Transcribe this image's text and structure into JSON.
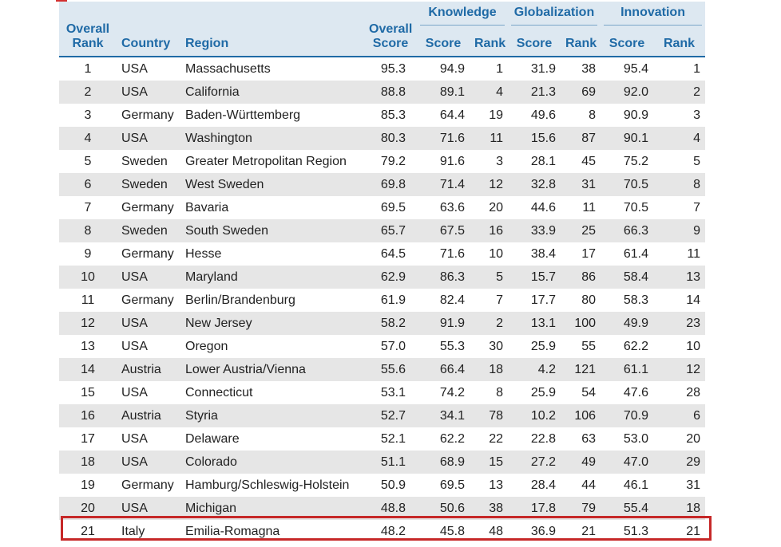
{
  "header": {
    "overall_rank": "Overall Rank",
    "country": "Country",
    "region": "Region",
    "overall_score": "Overall Score",
    "knowledge": "Knowledge",
    "globalization": "Globalization",
    "innovation": "Innovation",
    "score": "Score",
    "rank": "Rank"
  },
  "columns": [
    "Overall Rank",
    "Country",
    "Region",
    "Overall Score",
    "Knowledge Score",
    "Knowledge Rank",
    "Globalization Score",
    "Globalization Rank",
    "Innovation Score",
    "Innovation Rank"
  ],
  "rows": [
    [
      "1",
      "USA",
      "Massachusetts",
      "95.3",
      "94.9",
      "1",
      "31.9",
      "38",
      "95.4",
      "1"
    ],
    [
      "2",
      "USA",
      "California",
      "88.8",
      "89.1",
      "4",
      "21.3",
      "69",
      "92.0",
      "2"
    ],
    [
      "3",
      "Germany",
      "Baden-Württemberg",
      "85.3",
      "64.4",
      "19",
      "49.6",
      "8",
      "90.9",
      "3"
    ],
    [
      "4",
      "USA",
      "Washington",
      "80.3",
      "71.6",
      "11",
      "15.6",
      "87",
      "90.1",
      "4"
    ],
    [
      "5",
      "Sweden",
      "Greater Metropolitan Region",
      "79.2",
      "91.6",
      "3",
      "28.1",
      "45",
      "75.2",
      "5"
    ],
    [
      "6",
      "Sweden",
      "West Sweden",
      "69.8",
      "71.4",
      "12",
      "32.8",
      "31",
      "70.5",
      "8"
    ],
    [
      "7",
      "Germany",
      "Bavaria",
      "69.5",
      "63.6",
      "20",
      "44.6",
      "11",
      "70.5",
      "7"
    ],
    [
      "8",
      "Sweden",
      "South Sweden",
      "65.7",
      "67.5",
      "16",
      "33.9",
      "25",
      "66.3",
      "9"
    ],
    [
      "9",
      "Germany",
      "Hesse",
      "64.5",
      "71.6",
      "10",
      "38.4",
      "17",
      "61.4",
      "11"
    ],
    [
      "10",
      "USA",
      "Maryland",
      "62.9",
      "86.3",
      "5",
      "15.7",
      "86",
      "58.4",
      "13"
    ],
    [
      "11",
      "Germany",
      "Berlin/Brandenburg",
      "61.9",
      "82.4",
      "7",
      "17.7",
      "80",
      "58.3",
      "14"
    ],
    [
      "12",
      "USA",
      "New Jersey",
      "58.2",
      "91.9",
      "2",
      "13.1",
      "100",
      "49.9",
      "23"
    ],
    [
      "13",
      "USA",
      "Oregon",
      "57.0",
      "55.3",
      "30",
      "25.9",
      "55",
      "62.2",
      "10"
    ],
    [
      "14",
      "Austria",
      "Lower Austria/Vienna",
      "55.6",
      "66.4",
      "18",
      "4.2",
      "121",
      "61.1",
      "12"
    ],
    [
      "15",
      "USA",
      "Connecticut",
      "53.1",
      "74.2",
      "8",
      "25.9",
      "54",
      "47.6",
      "28"
    ],
    [
      "16",
      "Austria",
      "Styria",
      "52.7",
      "34.1",
      "78",
      "10.2",
      "106",
      "70.9",
      "6"
    ],
    [
      "17",
      "USA",
      "Delaware",
      "52.1",
      "62.2",
      "22",
      "22.8",
      "63",
      "53.0",
      "20"
    ],
    [
      "18",
      "USA",
      "Colorado",
      "51.1",
      "68.9",
      "15",
      "27.2",
      "49",
      "47.0",
      "29"
    ],
    [
      "19",
      "Germany",
      "Hamburg/Schleswig-Holstein",
      "50.9",
      "69.5",
      "13",
      "28.4",
      "44",
      "46.1",
      "31"
    ],
    [
      "20",
      "USA",
      "Michigan",
      "48.8",
      "50.6",
      "38",
      "17.8",
      "79",
      "55.4",
      "18"
    ],
    [
      "21",
      "Italy",
      "Emilia-Romagna",
      "48.2",
      "45.8",
      "48",
      "36.9",
      "21",
      "51.3",
      "21"
    ]
  ],
  "highlight": {
    "row_rank": "21",
    "color": "#c62828"
  },
  "colors": {
    "header_bg": "#dde8f1",
    "header_text": "#1f6aa6",
    "stripe": "#e6e6e6"
  }
}
